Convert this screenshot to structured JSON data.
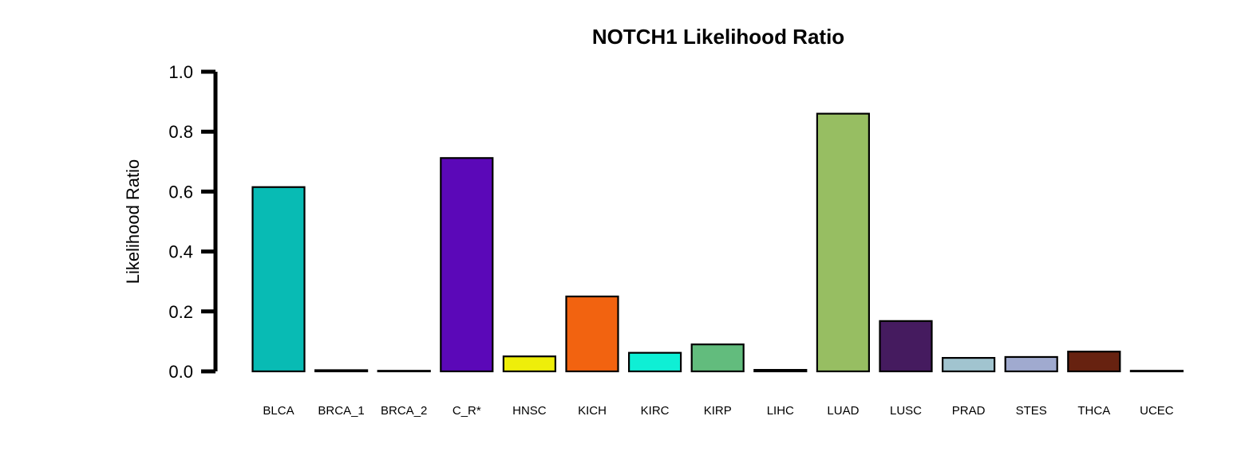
{
  "chart_data": {
    "type": "bar",
    "title": "NOTCH1 Likelihood Ratio",
    "xlabel": "",
    "ylabel": "Likelihood Ratio",
    "ylim": [
      0,
      1.0
    ],
    "yticks": [
      "0.0",
      "0.2",
      "0.4",
      "0.6",
      "0.8",
      "1.0"
    ],
    "grid": false,
    "legend": "none",
    "categories": [
      "BLCA",
      "BRCA_1",
      "BRCA_2",
      "C_R*",
      "HNSC",
      "KICH",
      "KIRC",
      "KIRP",
      "LIHC",
      "LUAD",
      "LUSC",
      "PRAD",
      "STES",
      "THCA",
      "UCEC"
    ],
    "values": [
      0.615,
      0.004,
      0.002,
      0.712,
      0.05,
      0.25,
      0.062,
      0.09,
      0.005,
      0.86,
      0.168,
      0.045,
      0.048,
      0.066,
      0.002
    ],
    "colors": [
      "#08BBB4",
      "#000000",
      "#000000",
      "#5B08B8",
      "#EEEE0A",
      "#F26310",
      "#0FEFD5",
      "#62BC7D",
      "#000000",
      "#97BE62",
      "#451B5F",
      "#A1C4CF",
      "#A0AACF",
      "#672210",
      "#000000"
    ]
  }
}
